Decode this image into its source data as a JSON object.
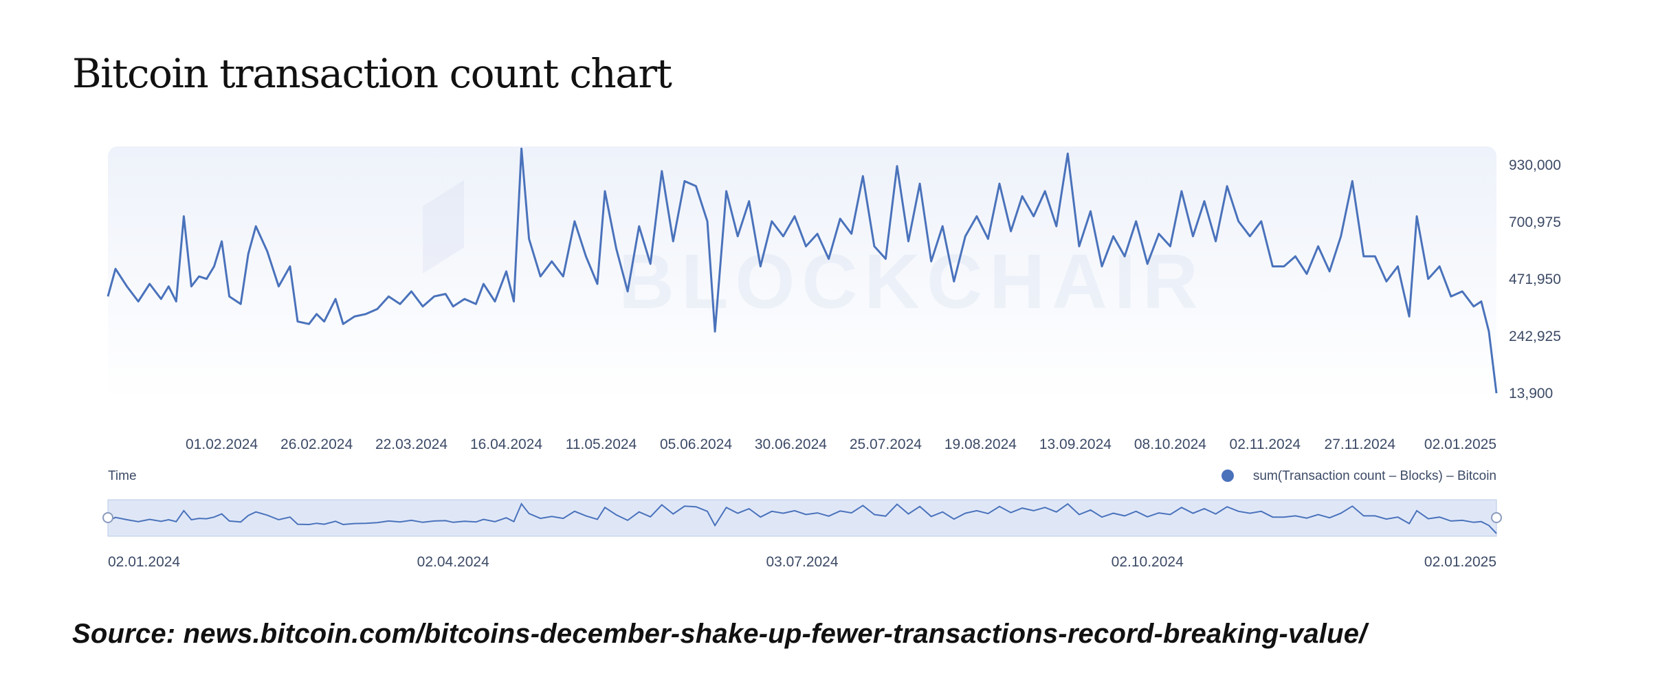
{
  "title": "Bitcoin transaction count chart",
  "source": "Source: news.bitcoin.com/bitcoins-december-shake-up-fewer-transactions-record-breaking-value/",
  "watermark": "BLOCKCHAIR",
  "colors": {
    "line": "#4a72bb",
    "text": "#3c4a66",
    "plot_bg_top": "#eef2fa",
    "plot_bg_bottom": "#ffffff",
    "navigator_fill": "#dfe7f7",
    "navigator_border": "#b8c8e6"
  },
  "chart_data": {
    "type": "line",
    "xlabel": "Time",
    "ylabel": "",
    "x_start": "2024-01-02",
    "x_end": "2025-01-02",
    "ylim": [
      13900,
      930000
    ],
    "y_ticks": [
      "930,000",
      "700,975",
      "471,950",
      "242,925",
      "13,900"
    ],
    "x_ticks": [
      "01.02.2024",
      "26.02.2024",
      "22.03.2024",
      "16.04.2024",
      "11.05.2024",
      "05.06.2024",
      "30.06.2024",
      "25.07.2024",
      "19.08.2024",
      "13.09.2024",
      "08.10.2024",
      "02.11.2024",
      "27.11.2024",
      "02.01.2025"
    ],
    "navigator_ticks": [
      "02.01.2024",
      "02.04.2024",
      "03.07.2024",
      "02.10.2024",
      "02.01.2025"
    ],
    "legend": "sum(Transaction count – Blocks) – Bitcoin",
    "legend_position": "bottom-right",
    "grid": false,
    "series": [
      {
        "name": "sum(Transaction count – Blocks) – Bitcoin",
        "points": [
          [
            "2024-01-02",
            400000
          ],
          [
            "2024-01-04",
            510000
          ],
          [
            "2024-01-07",
            440000
          ],
          [
            "2024-01-10",
            380000
          ],
          [
            "2024-01-13",
            450000
          ],
          [
            "2024-01-16",
            390000
          ],
          [
            "2024-01-18",
            440000
          ],
          [
            "2024-01-20",
            380000
          ],
          [
            "2024-01-22",
            720000
          ],
          [
            "2024-01-24",
            440000
          ],
          [
            "2024-01-26",
            480000
          ],
          [
            "2024-01-28",
            470000
          ],
          [
            "2024-01-30",
            520000
          ],
          [
            "2024-02-01",
            620000
          ],
          [
            "2024-02-03",
            400000
          ],
          [
            "2024-02-06",
            370000
          ],
          [
            "2024-02-08",
            570000
          ],
          [
            "2024-02-10",
            680000
          ],
          [
            "2024-02-13",
            580000
          ],
          [
            "2024-02-16",
            440000
          ],
          [
            "2024-02-19",
            520000
          ],
          [
            "2024-02-21",
            300000
          ],
          [
            "2024-02-24",
            290000
          ],
          [
            "2024-02-26",
            330000
          ],
          [
            "2024-02-28",
            300000
          ],
          [
            "2024-03-02",
            390000
          ],
          [
            "2024-03-04",
            290000
          ],
          [
            "2024-03-07",
            320000
          ],
          [
            "2024-03-10",
            330000
          ],
          [
            "2024-03-13",
            350000
          ],
          [
            "2024-03-16",
            400000
          ],
          [
            "2024-03-19",
            370000
          ],
          [
            "2024-03-22",
            420000
          ],
          [
            "2024-03-25",
            360000
          ],
          [
            "2024-03-28",
            400000
          ],
          [
            "2024-03-31",
            410000
          ],
          [
            "2024-04-02",
            360000
          ],
          [
            "2024-04-05",
            390000
          ],
          [
            "2024-04-08",
            370000
          ],
          [
            "2024-04-10",
            450000
          ],
          [
            "2024-04-13",
            380000
          ],
          [
            "2024-04-16",
            500000
          ],
          [
            "2024-04-18",
            380000
          ],
          [
            "2024-04-20",
            990000
          ],
          [
            "2024-04-22",
            630000
          ],
          [
            "2024-04-25",
            480000
          ],
          [
            "2024-04-28",
            540000
          ],
          [
            "2024-05-01",
            480000
          ],
          [
            "2024-05-04",
            700000
          ],
          [
            "2024-05-07",
            560000
          ],
          [
            "2024-05-10",
            450000
          ],
          [
            "2024-05-12",
            820000
          ],
          [
            "2024-05-15",
            590000
          ],
          [
            "2024-05-18",
            420000
          ],
          [
            "2024-05-21",
            680000
          ],
          [
            "2024-05-24",
            530000
          ],
          [
            "2024-05-27",
            900000
          ],
          [
            "2024-05-30",
            620000
          ],
          [
            "2024-06-02",
            860000
          ],
          [
            "2024-06-05",
            840000
          ],
          [
            "2024-06-08",
            700000
          ],
          [
            "2024-06-10",
            260000
          ],
          [
            "2024-06-13",
            820000
          ],
          [
            "2024-06-16",
            640000
          ],
          [
            "2024-06-19",
            780000
          ],
          [
            "2024-06-22",
            520000
          ],
          [
            "2024-06-25",
            700000
          ],
          [
            "2024-06-28",
            640000
          ],
          [
            "2024-07-01",
            720000
          ],
          [
            "2024-07-04",
            600000
          ],
          [
            "2024-07-07",
            650000
          ],
          [
            "2024-07-10",
            550000
          ],
          [
            "2024-07-13",
            710000
          ],
          [
            "2024-07-16",
            650000
          ],
          [
            "2024-07-19",
            880000
          ],
          [
            "2024-07-22",
            600000
          ],
          [
            "2024-07-25",
            550000
          ],
          [
            "2024-07-28",
            920000
          ],
          [
            "2024-07-31",
            620000
          ],
          [
            "2024-08-03",
            850000
          ],
          [
            "2024-08-06",
            540000
          ],
          [
            "2024-08-09",
            680000
          ],
          [
            "2024-08-12",
            460000
          ],
          [
            "2024-08-15",
            640000
          ],
          [
            "2024-08-18",
            720000
          ],
          [
            "2024-08-21",
            630000
          ],
          [
            "2024-08-24",
            850000
          ],
          [
            "2024-08-27",
            660000
          ],
          [
            "2024-08-30",
            800000
          ],
          [
            "2024-09-02",
            720000
          ],
          [
            "2024-09-05",
            820000
          ],
          [
            "2024-09-08",
            680000
          ],
          [
            "2024-09-11",
            970000
          ],
          [
            "2024-09-14",
            600000
          ],
          [
            "2024-09-17",
            740000
          ],
          [
            "2024-09-20",
            520000
          ],
          [
            "2024-09-23",
            640000
          ],
          [
            "2024-09-26",
            560000
          ],
          [
            "2024-09-29",
            700000
          ],
          [
            "2024-10-02",
            530000
          ],
          [
            "2024-10-05",
            650000
          ],
          [
            "2024-10-08",
            600000
          ],
          [
            "2024-10-11",
            820000
          ],
          [
            "2024-10-14",
            640000
          ],
          [
            "2024-10-17",
            780000
          ],
          [
            "2024-10-20",
            620000
          ],
          [
            "2024-10-23",
            840000
          ],
          [
            "2024-10-26",
            700000
          ],
          [
            "2024-10-29",
            640000
          ],
          [
            "2024-11-01",
            700000
          ],
          [
            "2024-11-04",
            520000
          ],
          [
            "2024-11-07",
            520000
          ],
          [
            "2024-11-10",
            560000
          ],
          [
            "2024-11-13",
            490000
          ],
          [
            "2024-11-16",
            600000
          ],
          [
            "2024-11-19",
            500000
          ],
          [
            "2024-11-22",
            640000
          ],
          [
            "2024-11-25",
            860000
          ],
          [
            "2024-11-28",
            560000
          ],
          [
            "2024-12-01",
            560000
          ],
          [
            "2024-12-04",
            460000
          ],
          [
            "2024-12-07",
            520000
          ],
          [
            "2024-12-10",
            320000
          ],
          [
            "2024-12-12",
            720000
          ],
          [
            "2024-12-15",
            470000
          ],
          [
            "2024-12-18",
            520000
          ],
          [
            "2024-12-21",
            400000
          ],
          [
            "2024-12-24",
            420000
          ],
          [
            "2024-12-27",
            360000
          ],
          [
            "2024-12-29",
            380000
          ],
          [
            "2024-12-31",
            260000
          ],
          [
            "2025-01-02",
            13900
          ]
        ]
      }
    ]
  }
}
